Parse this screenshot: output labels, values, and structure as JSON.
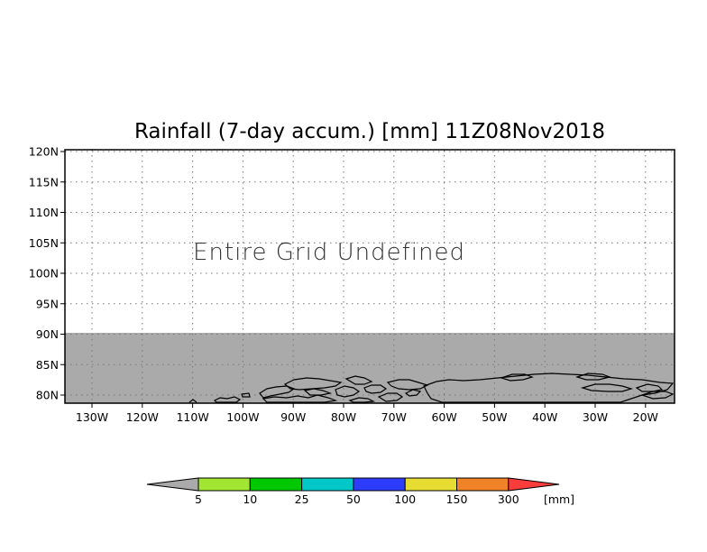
{
  "map": {
    "title": "Rainfall (7-day accum.) [mm] 11Z08Nov2018",
    "message": "Entire Grid Undefined",
    "lat_ticks": [
      "120N",
      "115N",
      "110N",
      "105N",
      "100N",
      "95N",
      "90N",
      "85N",
      "80N"
    ],
    "lon_ticks": [
      "130W",
      "120W",
      "110W",
      "100W",
      "90W",
      "80W",
      "70W",
      "60W",
      "50W",
      "40W",
      "30W",
      "20W"
    ],
    "undefined_region_color": "#aaaaaa",
    "coastline_color": "#000000"
  },
  "colorbar": {
    "unit": "[mm]",
    "thresholds": [
      "5",
      "10",
      "25",
      "50",
      "100",
      "150",
      "300"
    ],
    "colors": [
      "#aaaaaa",
      "#a0e632",
      "#00c800",
      "#00c8c8",
      "#2d3cfa",
      "#e6dc32",
      "#f08228",
      "#fa3c3c"
    ]
  }
}
